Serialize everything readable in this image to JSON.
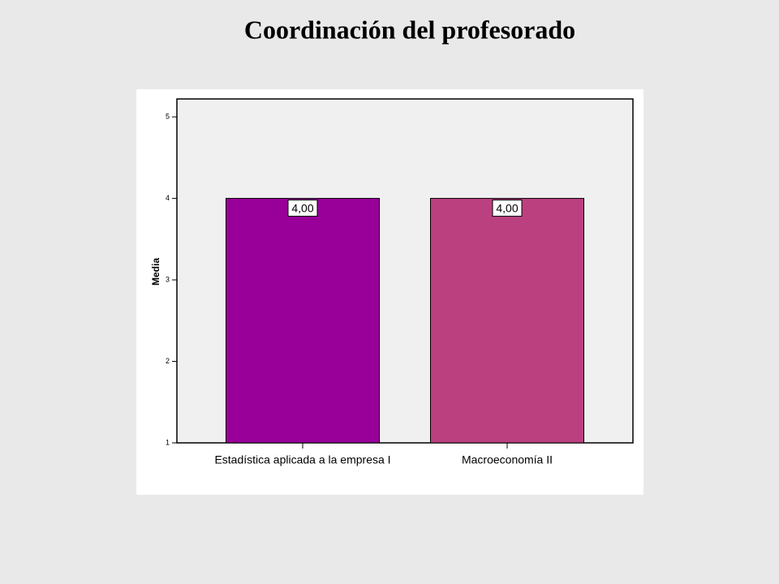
{
  "chart_data": {
    "type": "bar",
    "title": "Coordinación del profesorado",
    "categories": [
      "Estadística aplicada a la empresa I",
      "Macroeconomía II"
    ],
    "values": [
      4,
      4
    ],
    "value_labels": [
      "4,00",
      "4,00"
    ],
    "colors": [
      "#990099",
      "#bb4080"
    ],
    "y_label": "Media",
    "ylim": [
      1,
      5.22
    ],
    "yticks": [
      1,
      2,
      3,
      4,
      5
    ]
  }
}
